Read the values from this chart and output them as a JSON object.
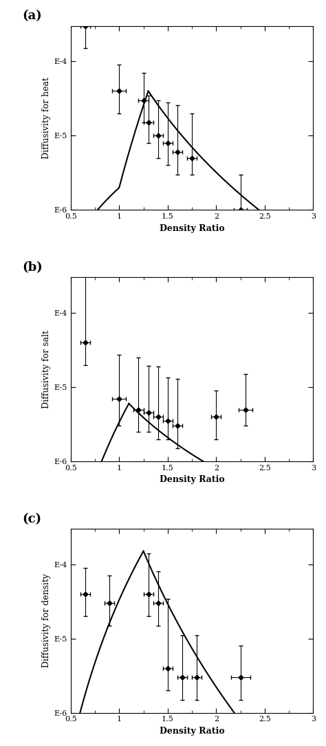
{
  "panels": [
    {
      "label": "(a)",
      "ylabel": "Diffusivity for heat",
      "xlabel": "Density Ratio",
      "xlim": [
        0.5,
        3.0
      ],
      "ylim": [
        1e-06,
        0.0003
      ],
      "yticks": [
        1e-06,
        1e-05,
        0.0001
      ],
      "ytick_labels": [
        "E-6",
        "E-5",
        "E-4"
      ],
      "xticks": [
        0.5,
        1.0,
        1.5,
        2.0,
        2.5,
        3.0
      ],
      "xtick_labels": [
        "0.5",
        "1",
        "1.5",
        "2",
        "2.5",
        "3"
      ],
      "data_x": [
        0.65,
        1.0,
        1.25,
        1.3,
        1.4,
        1.5,
        1.6,
        1.75,
        2.25
      ],
      "data_y": [
        0.0003,
        4e-05,
        3e-05,
        1.5e-05,
        1e-05,
        8e-06,
        6e-06,
        5e-06,
        1e-06
      ],
      "data_xerr": [
        0.05,
        0.07,
        0.05,
        0.05,
        0.05,
        0.05,
        0.05,
        0.05,
        0.07
      ],
      "data_yerr_lo": [
        0.00015,
        2e-05,
        1.5e-05,
        7e-06,
        5e-06,
        4e-06,
        3e-06,
        2e-06,
        5e-07
      ],
      "data_yerr_hi": [
        0.001,
        5e-05,
        4e-05,
        2e-05,
        2e-05,
        2e-05,
        2e-05,
        1.5e-05,
        2e-06
      ],
      "curve_x": [
        0.5,
        1.0,
        1.3,
        3.0
      ],
      "curve_y": [
        3e-07,
        2e-06,
        4e-05,
        3e-07
      ]
    },
    {
      "label": "(b)",
      "ylabel": "Diffusivity for salt",
      "xlabel": "Density Ratio",
      "xlim": [
        0.5,
        3.0
      ],
      "ylim": [
        1e-06,
        0.0003
      ],
      "yticks": [
        1e-06,
        1e-05,
        0.0001
      ],
      "ytick_labels": [
        "E-6",
        "E-5",
        "E-4"
      ],
      "xticks": [
        0.5,
        1.0,
        1.5,
        2.0,
        2.5,
        3.0
      ],
      "xtick_labels": [
        "0.5",
        "1",
        "1.5",
        "2",
        "2.5",
        "3"
      ],
      "data_x": [
        0.65,
        1.0,
        1.2,
        1.3,
        1.4,
        1.5,
        1.6,
        2.0,
        2.3
      ],
      "data_y": [
        4e-05,
        7e-06,
        5e-06,
        4.5e-06,
        4e-06,
        3.5e-06,
        3e-06,
        4e-06,
        5e-06
      ],
      "data_xerr": [
        0.05,
        0.07,
        0.05,
        0.05,
        0.05,
        0.05,
        0.05,
        0.05,
        0.07
      ],
      "data_yerr_lo": [
        2e-05,
        4e-06,
        2.5e-06,
        2e-06,
        2e-06,
        1.5e-06,
        1.5e-06,
        2e-06,
        2e-06
      ],
      "data_yerr_hi": [
        0.0003,
        2e-05,
        2e-05,
        1.5e-05,
        1.5e-05,
        1e-05,
        1e-05,
        5e-06,
        1e-05
      ],
      "curve_x": [
        0.5,
        1.1,
        3.0
      ],
      "curve_y": [
        5e-08,
        6e-06,
        2e-07
      ]
    },
    {
      "label": "(c)",
      "ylabel": "Diffusivity for density",
      "xlabel": "Density Ratio",
      "xlim": [
        0.5,
        3.0
      ],
      "ylim": [
        1e-06,
        0.0003
      ],
      "yticks": [
        1e-06,
        1e-05,
        0.0001
      ],
      "ytick_labels": [
        "E-6",
        "E-5",
        "E-4"
      ],
      "xticks": [
        0.5,
        1.0,
        1.5,
        2.0,
        2.5,
        3.0
      ],
      "xtick_labels": [
        "0.5",
        "1",
        "1.5",
        "2",
        "2.5",
        "3"
      ],
      "data_x": [
        0.65,
        0.9,
        1.3,
        1.4,
        1.5,
        1.65,
        1.8,
        2.25
      ],
      "data_y": [
        4e-05,
        3e-05,
        4e-05,
        3e-05,
        4e-06,
        3e-06,
        3e-06,
        3e-06
      ],
      "data_xerr": [
        0.05,
        0.05,
        0.05,
        0.05,
        0.05,
        0.05,
        0.05,
        0.1
      ],
      "data_yerr_lo": [
        2e-05,
        1.5e-05,
        2e-05,
        1.5e-05,
        2e-06,
        1.5e-06,
        1.5e-06,
        1.5e-06
      ],
      "data_yerr_hi": [
        5e-05,
        4e-05,
        0.0001,
        5e-05,
        3e-05,
        8e-06,
        8e-06,
        5e-06
      ],
      "curve_x": [
        0.5,
        1.25,
        2.5
      ],
      "curve_y": [
        3e-07,
        0.00015,
        3e-07
      ]
    }
  ],
  "background_color": "#ffffff",
  "line_color": "#000000",
  "marker_color": "#000000",
  "marker_size": 3.5,
  "capsize": 2,
  "label_fontsize": 13,
  "axis_fontsize": 9,
  "tick_fontsize": 8
}
